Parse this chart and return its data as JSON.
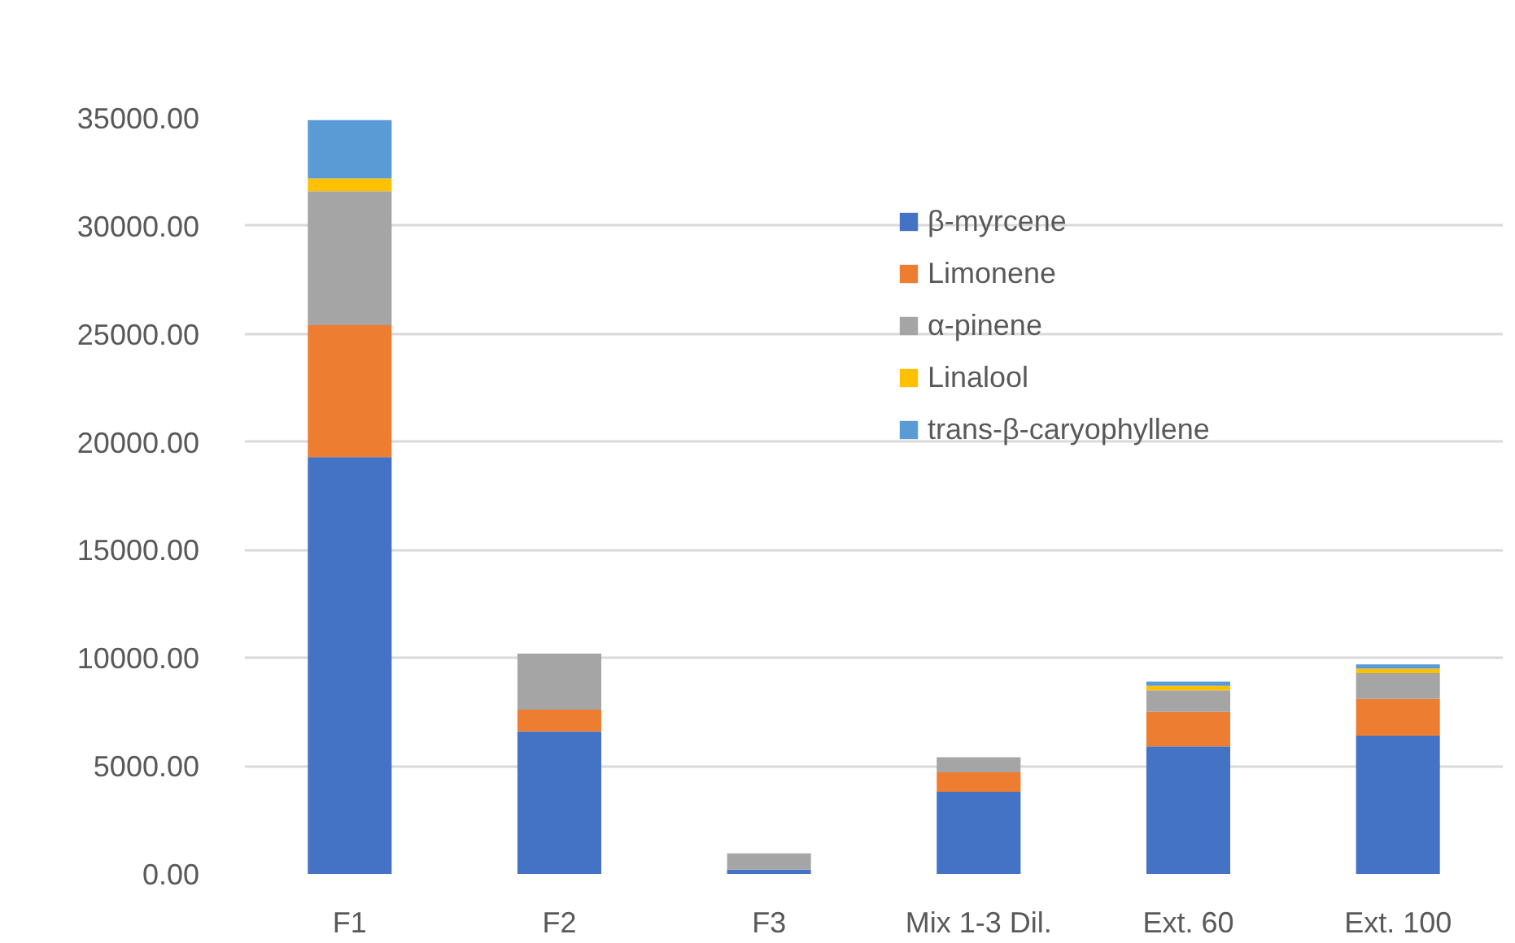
{
  "chart_data": {
    "type": "bar",
    "stacked": true,
    "categories": [
      "F1",
      "F2",
      "F3",
      "Mix 1-3 Dil.",
      "Ext. 60",
      "Ext. 100"
    ],
    "series": [
      {
        "name": "β-myrcene",
        "color": "#4472c4",
        "values": [
          19300,
          6600,
          200,
          3800,
          5900,
          6400
        ]
      },
      {
        "name": "Limonene",
        "color": "#ed7d31",
        "values": [
          6100,
          1000,
          0,
          900,
          1600,
          1700
        ]
      },
      {
        "name": "α-pinene",
        "color": "#a5a5a5",
        "values": [
          6200,
          2600,
          750,
          700,
          1000,
          1200
        ]
      },
      {
        "name": "Linalool",
        "color": "#ffc000",
        "values": [
          600,
          0,
          0,
          0,
          200,
          200
        ]
      },
      {
        "name": "trans-β-caryophyllene",
        "color": "#5b9bd5",
        "values": [
          2700,
          0,
          0,
          0,
          200,
          200
        ]
      }
    ],
    "ylim": [
      0,
      35000
    ],
    "yticks": [
      {
        "value": 0,
        "label": "0.00"
      },
      {
        "value": 5000,
        "label": "5000.00"
      },
      {
        "value": 10000,
        "label": "10000.00"
      },
      {
        "value": 15000,
        "label": "15000.00"
      },
      {
        "value": 20000,
        "label": "20000.00"
      },
      {
        "value": 25000,
        "label": "25000.00"
      },
      {
        "value": 30000,
        "label": "30000.00"
      },
      {
        "value": 35000,
        "label": "35000.00"
      }
    ],
    "grid": "y",
    "legend": "top right"
  }
}
